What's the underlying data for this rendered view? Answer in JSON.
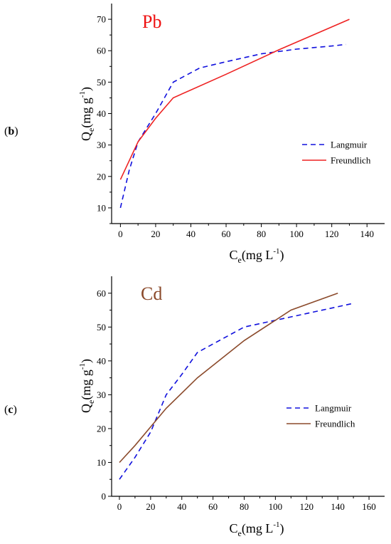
{
  "colors": {
    "langmuir": "#1010dd",
    "freundlich_pb": "#ee2222",
    "freundlich_cd": "#8b4a2b",
    "title_pb": "#ee1111",
    "title_cd": "#8b4a2b"
  },
  "chart_data": [
    {
      "type": "line",
      "panel": "(b)",
      "panel_parts": {
        "open": "(",
        "letter": "b",
        "close": ")"
      },
      "title": "Pb",
      "xlabel": {
        "main": "C",
        "sub": "e",
        "unit": "(mg L",
        "sup": "-1",
        "close": ")"
      },
      "ylabel": {
        "main": "Q",
        "sub": "e",
        "unit": "(mg g",
        "sup": "-1",
        "close": ")"
      },
      "xlim": [
        -5,
        150
      ],
      "ylim": [
        5,
        75
      ],
      "xticks": [
        0,
        20,
        40,
        60,
        80,
        100,
        120,
        140
      ],
      "yticks": [
        10,
        20,
        30,
        40,
        50,
        60,
        70
      ],
      "legend_position": "right-middle",
      "series": [
        {
          "name": "Langmuir",
          "style": "dashed",
          "color": "#1010dd",
          "x": [
            0,
            5,
            10,
            20,
            30,
            45,
            60,
            80,
            100,
            120,
            128
          ],
          "y": [
            10,
            22,
            31,
            40,
            50,
            54.5,
            56.5,
            59,
            60.5,
            61.5,
            62
          ]
        },
        {
          "name": "Freundlich",
          "style": "solid",
          "color": "#ee2222",
          "x": [
            0,
            5,
            10,
            20,
            30,
            60,
            90,
            130
          ],
          "y": [
            19,
            25,
            31,
            38.5,
            45,
            52.5,
            60.3,
            70
          ]
        }
      ]
    },
    {
      "type": "line",
      "panel": "(c)",
      "panel_parts": {
        "open": "(",
        "letter": "c",
        "close": ")"
      },
      "title": "Cd",
      "xlabel": {
        "main": "C",
        "sub": "e",
        "unit": "(mg L",
        "sup": "-1",
        "close": ")"
      },
      "ylabel": {
        "main": "Q",
        "sub": "e",
        "unit": "(mg g",
        "sup": "-1",
        "close": ")"
      },
      "xlim": [
        -5,
        170
      ],
      "ylim": [
        0,
        65
      ],
      "xticks": [
        0,
        20,
        40,
        60,
        80,
        100,
        120,
        140,
        160
      ],
      "yticks": [
        0,
        10,
        20,
        30,
        40,
        50,
        60
      ],
      "legend_position": "right-middle",
      "series": [
        {
          "name": "Langmuir",
          "style": "dashed",
          "color": "#1010dd",
          "x": [
            0,
            10,
            20,
            30,
            40,
            50,
            60,
            80,
            100,
            120,
            150
          ],
          "y": [
            5,
            11.5,
            19,
            30,
            36,
            42.5,
            45,
            50,
            52,
            54,
            57
          ]
        },
        {
          "name": "Freundlich",
          "style": "solid",
          "color": "#8b4a2b",
          "x": [
            0,
            10,
            20,
            30,
            50,
            80,
            110,
            140
          ],
          "y": [
            10,
            15,
            20.5,
            26,
            35,
            46,
            55,
            60
          ]
        }
      ]
    }
  ]
}
